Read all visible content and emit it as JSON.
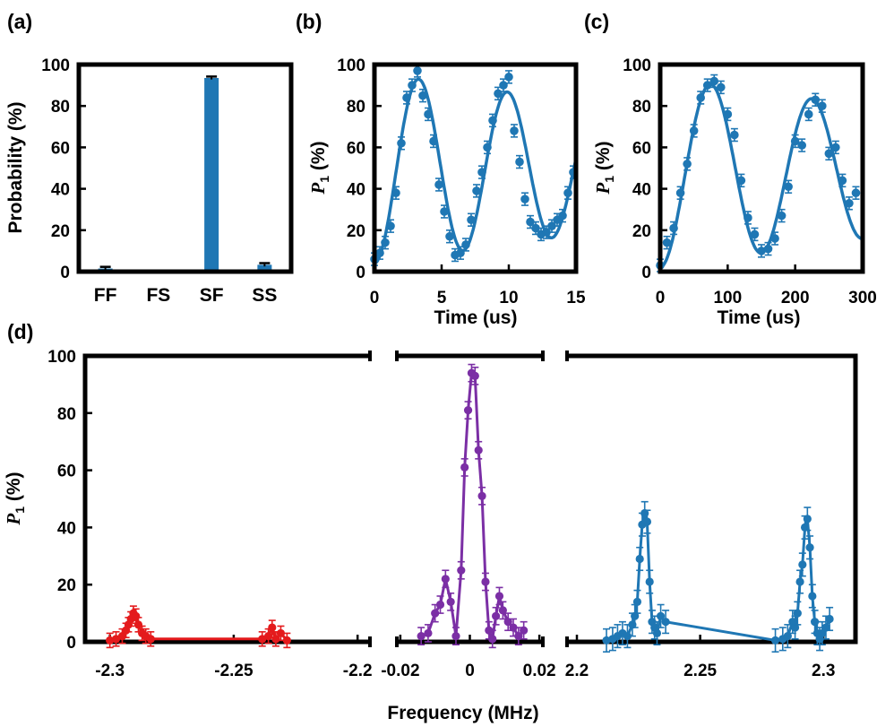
{
  "colors": {
    "blue": "#1f77b4",
    "purple": "#7b2fa5",
    "red": "#e41a1c",
    "axis": "#000000"
  },
  "chart_data": [
    {
      "panel_label": "(a)",
      "type": "bar",
      "categories": [
        "FF",
        "FS",
        "SF",
        "SS"
      ],
      "values": [
        1.5,
        0,
        93.5,
        3.3
      ],
      "errors": [
        0.8,
        0,
        0.7,
        0.8
      ],
      "ylabel": "Probability (%)",
      "ylim": [
        0,
        100
      ],
      "yticks": [
        "0",
        "20",
        "40",
        "60",
        "80",
        "100"
      ],
      "xticks": [
        "FF",
        "FS",
        "SF",
        "SS"
      ]
    },
    {
      "panel_label": "(b)",
      "type": "scatter",
      "xlabel": "Time (us)",
      "ylabel_italic": "P",
      "ylabel_sub": "1",
      "ylabel_rest": " (%)",
      "xlim": [
        0,
        15
      ],
      "ylim": [
        0,
        100
      ],
      "xticks": [
        "0",
        "5",
        "10",
        "15"
      ],
      "yticks": [
        "0",
        "20",
        "40",
        "60",
        "80",
        "100"
      ],
      "x": [
        0,
        0.4,
        0.8,
        1.2,
        1.6,
        2.0,
        2.4,
        2.8,
        3.2,
        3.6,
        4.0,
        4.4,
        4.8,
        5.2,
        5.6,
        6.0,
        6.4,
        6.8,
        7.2,
        7.6,
        8.0,
        8.4,
        8.8,
        9.2,
        9.6,
        10.0,
        10.4,
        10.8,
        11.2,
        11.6,
        12.0,
        12.4,
        12.8,
        13.2,
        13.6,
        14.0,
        14.4,
        14.8
      ],
      "y": [
        6,
        9,
        14,
        22,
        38,
        62,
        84,
        90,
        97,
        85,
        76,
        63,
        42,
        29,
        17,
        8,
        9,
        13,
        25,
        39,
        48,
        60,
        73,
        86,
        90,
        94,
        68,
        53,
        35,
        24,
        21,
        18,
        19,
        22,
        25,
        27,
        38,
        48
      ],
      "err": 3,
      "fit": {
        "type": "damped_sine",
        "period": 6.6,
        "offset": 50,
        "amp_start": 46,
        "amp_end": 32
      }
    },
    {
      "panel_label": "(c)",
      "type": "scatter",
      "xlabel": "Time (us)",
      "ylabel_italic": "P",
      "ylabel_sub": "1",
      "ylabel_rest": " (%)",
      "xlim": [
        0,
        300
      ],
      "ylim": [
        0,
        100
      ],
      "xticks": [
        "0",
        "100",
        "200",
        "300"
      ],
      "yticks": [
        "0",
        "20",
        "40",
        "60",
        "80",
        "100"
      ],
      "x": [
        0,
        10,
        20,
        30,
        40,
        50,
        60,
        70,
        80,
        90,
        100,
        110,
        120,
        130,
        140,
        150,
        160,
        170,
        180,
        190,
        200,
        210,
        220,
        230,
        240,
        250,
        260,
        270,
        280,
        290
      ],
      "y": [
        3,
        14,
        21,
        38,
        52,
        68,
        84,
        90,
        92,
        89,
        76,
        66,
        44,
        26,
        18,
        10,
        11,
        16,
        27,
        41,
        63,
        61,
        76,
        83,
        80,
        57,
        60,
        44,
        33,
        38
      ],
      "err": 3,
      "fit": {
        "type": "damped_sine",
        "period": 150,
        "offset": 48,
        "amp_start": 46,
        "amp_end": 32
      }
    },
    {
      "panel_label": "(d)",
      "type": "scatter",
      "xlabel": "Frequency (MHz)",
      "ylabel_italic": "P",
      "ylabel_sub": "1",
      "ylabel_rest": " (%)",
      "ylim": [
        0,
        100
      ],
      "yticks": [
        "0",
        "20",
        "40",
        "60",
        "80",
        "100"
      ],
      "segments": [
        {
          "xlim": [
            -2.31,
            -2.195
          ],
          "xticks": [
            "-2.3",
            "-2.25",
            "-2.2"
          ],
          "series": [
            {
              "color": "red",
              "x": [
                -2.3,
                -2.2975,
                -2.295,
                -2.2935,
                -2.2925,
                -2.2915,
                -2.2905,
                -2.2895,
                -2.2885,
                -2.287,
                -2.2855,
                -2.2835,
                -2.2385,
                -2.236,
                -2.2345,
                -2.233,
                -2.231,
                -2.2285
              ],
              "y": [
                0.5,
                1,
                2,
                4,
                6,
                8,
                10,
                9,
                6,
                3,
                2,
                1,
                1,
                2,
                5,
                1,
                3,
                0.5
              ],
              "err": 2.5
            }
          ]
        },
        {
          "xlim": [
            -0.021,
            0.021
          ],
          "xticks": [
            "-0.02",
            "0",
            "0.02"
          ],
          "series": [
            {
              "color": "purple",
              "x": [
                -0.014,
                -0.012,
                -0.01,
                -0.0085,
                -0.007,
                -0.0055,
                -0.004,
                -0.0025,
                -0.0015,
                -0.0005,
                0.0005,
                0.0015,
                0.0025,
                0.0035,
                0.0045,
                0.0055,
                0.0065,
                0.0075,
                0.0085,
                0.0095,
                0.011,
                0.0125,
                0.014,
                0.0155
              ],
              "y": [
                2,
                3,
                10,
                13,
                22,
                14,
                2,
                25,
                61,
                81,
                94,
                93,
                67,
                51,
                21,
                4,
                1,
                9,
                16,
                11,
                7,
                5,
                2,
                4
              ],
              "err": 3
            }
          ]
        },
        {
          "xlim": [
            2.196,
            2.313
          ],
          "xticks": [
            "2.2",
            "2.25",
            "2.3"
          ],
          "series": [
            {
              "color": "blue",
              "x": [
                2.212,
                2.2145,
                2.2165,
                2.2185,
                2.2205,
                2.2225,
                2.2235,
                2.2245,
                2.2255,
                2.2265,
                2.2275,
                2.2285,
                2.2295,
                2.2305,
                2.2315,
                2.2325,
                2.234,
                2.236,
                2.2805,
                2.2835,
                2.2855,
                2.2875,
                2.2885,
                2.2895,
                2.2905,
                2.2915,
                2.2925,
                2.2935,
                2.2945,
                2.2955,
                2.2965,
                2.2975,
                2.2985,
                2.2995,
                2.301,
                2.3025
              ],
              "y": [
                0.5,
                1,
                2,
                3,
                2,
                6,
                9,
                14,
                29,
                41,
                45,
                42,
                21,
                7,
                5,
                3,
                9,
                7,
                0.5,
                1,
                2,
                7,
                5,
                10,
                21,
                27,
                40,
                43,
                33,
                16,
                7,
                3,
                1,
                3,
                5,
                8
              ],
              "err": 4
            }
          ]
        }
      ]
    }
  ]
}
